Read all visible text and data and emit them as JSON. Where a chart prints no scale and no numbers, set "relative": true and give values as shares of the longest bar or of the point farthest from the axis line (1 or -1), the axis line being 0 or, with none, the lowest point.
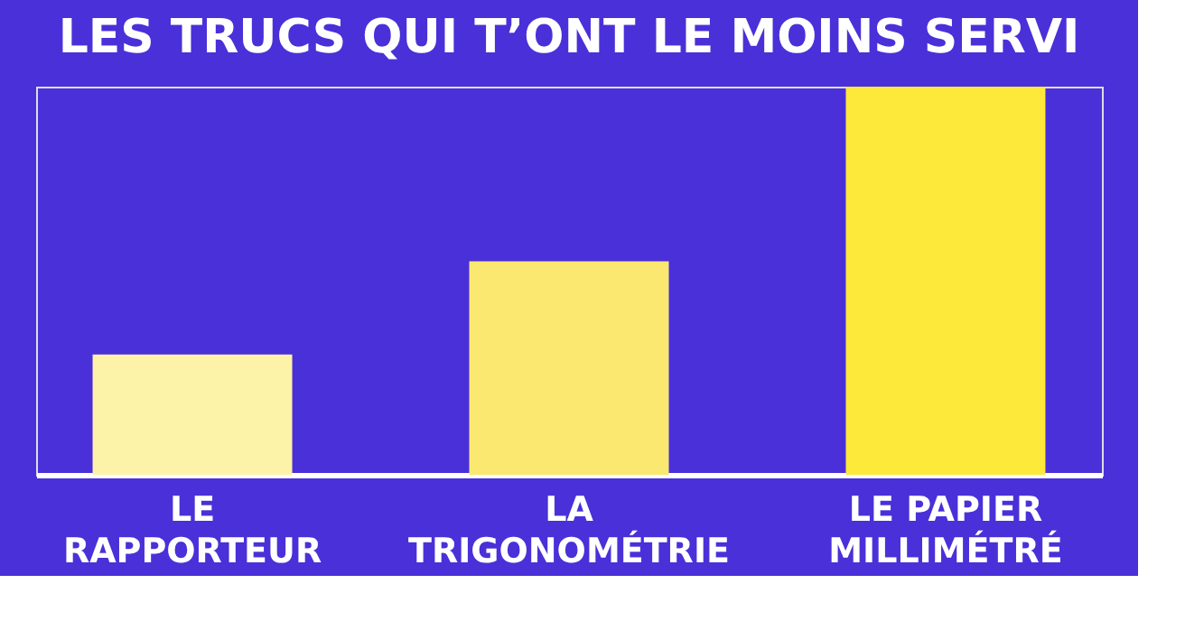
{
  "chart_data": {
    "type": "bar",
    "title": "LES TRUCS QUI T’ONT LE MOINS SERVI",
    "categories": [
      "LE\nRAPPORTEUR",
      "LA\nTRIGONOMÉTRIE",
      "LE PAPIER\nMILLIMÉTRÉ"
    ],
    "values": [
      0.31,
      0.55,
      1
    ],
    "colors": [
      "#fdf3a8",
      "#fbe870",
      "#fde93a"
    ],
    "relative": true,
    "grid": false,
    "legend": false
  }
}
